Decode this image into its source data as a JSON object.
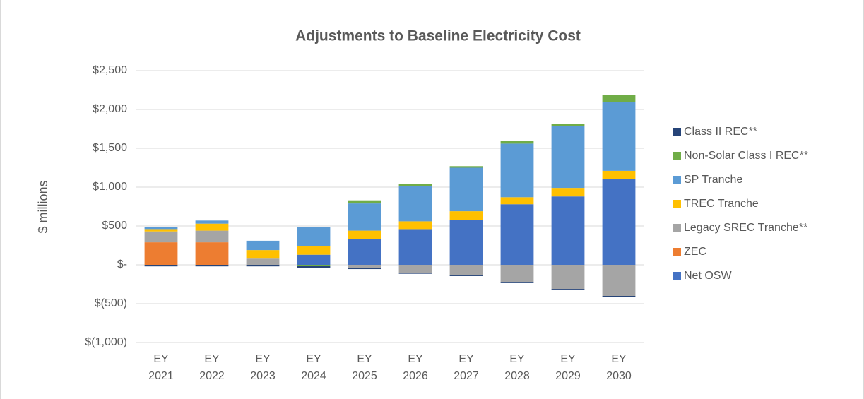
{
  "chart_data": {
    "type": "stacked_bar",
    "title": "Adjustments to Baseline Electricity Cost",
    "ylabel": "$ millions",
    "categories": [
      "EY 2021",
      "EY 2022",
      "EY 2023",
      "EY 2024",
      "EY 2025",
      "EY 2026",
      "EY 2027",
      "EY 2028",
      "EY 2029",
      "EY 2030"
    ],
    "series": [
      {
        "name": "Net OSW",
        "color": "#4472c4",
        "values": [
          0,
          0,
          0,
          130,
          330,
          460,
          580,
          780,
          880,
          1100
        ]
      },
      {
        "name": "ZEC",
        "color": "#ed7d31",
        "values": [
          290,
          290,
          0,
          0,
          0,
          0,
          0,
          0,
          0,
          0
        ]
      },
      {
        "name": "Legacy SREC Tranche**",
        "color": "#a5a5a5",
        "values": [
          140,
          150,
          80,
          0,
          -40,
          -100,
          -130,
          -220,
          -310,
          -400
        ]
      },
      {
        "name": "TREC Tranche",
        "color": "#ffc000",
        "values": [
          30,
          90,
          110,
          110,
          110,
          100,
          110,
          90,
          110,
          110
        ]
      },
      {
        "name": "SP Tranche",
        "color": "#5b9bd5",
        "values": [
          30,
          40,
          120,
          250,
          350,
          450,
          560,
          690,
          800,
          890
        ]
      },
      {
        "name": "Non-Solar Class I REC**",
        "color": "#70ad47",
        "values": [
          0,
          0,
          0,
          -15,
          40,
          30,
          20,
          40,
          20,
          90
        ]
      },
      {
        "name": "Class II REC**",
        "color": "#264478",
        "values": [
          -20,
          -20,
          -20,
          -25,
          -15,
          -15,
          -15,
          -15,
          -15,
          -15
        ]
      }
    ],
    "ylim": [
      -1000,
      2500
    ],
    "yticks": [
      {
        "value": -1000,
        "label": "$(1,000)"
      },
      {
        "value": -500,
        "label": "$(500)"
      },
      {
        "value": 0,
        "label": "$-"
      },
      {
        "value": 500,
        "label": "$500"
      },
      {
        "value": 1000,
        "label": "$1,000"
      },
      {
        "value": 1500,
        "label": "$1,500"
      },
      {
        "value": 2000,
        "label": "$2,000"
      },
      {
        "value": 2500,
        "label": "$2,500"
      }
    ],
    "grid": true,
    "legend": "right"
  }
}
